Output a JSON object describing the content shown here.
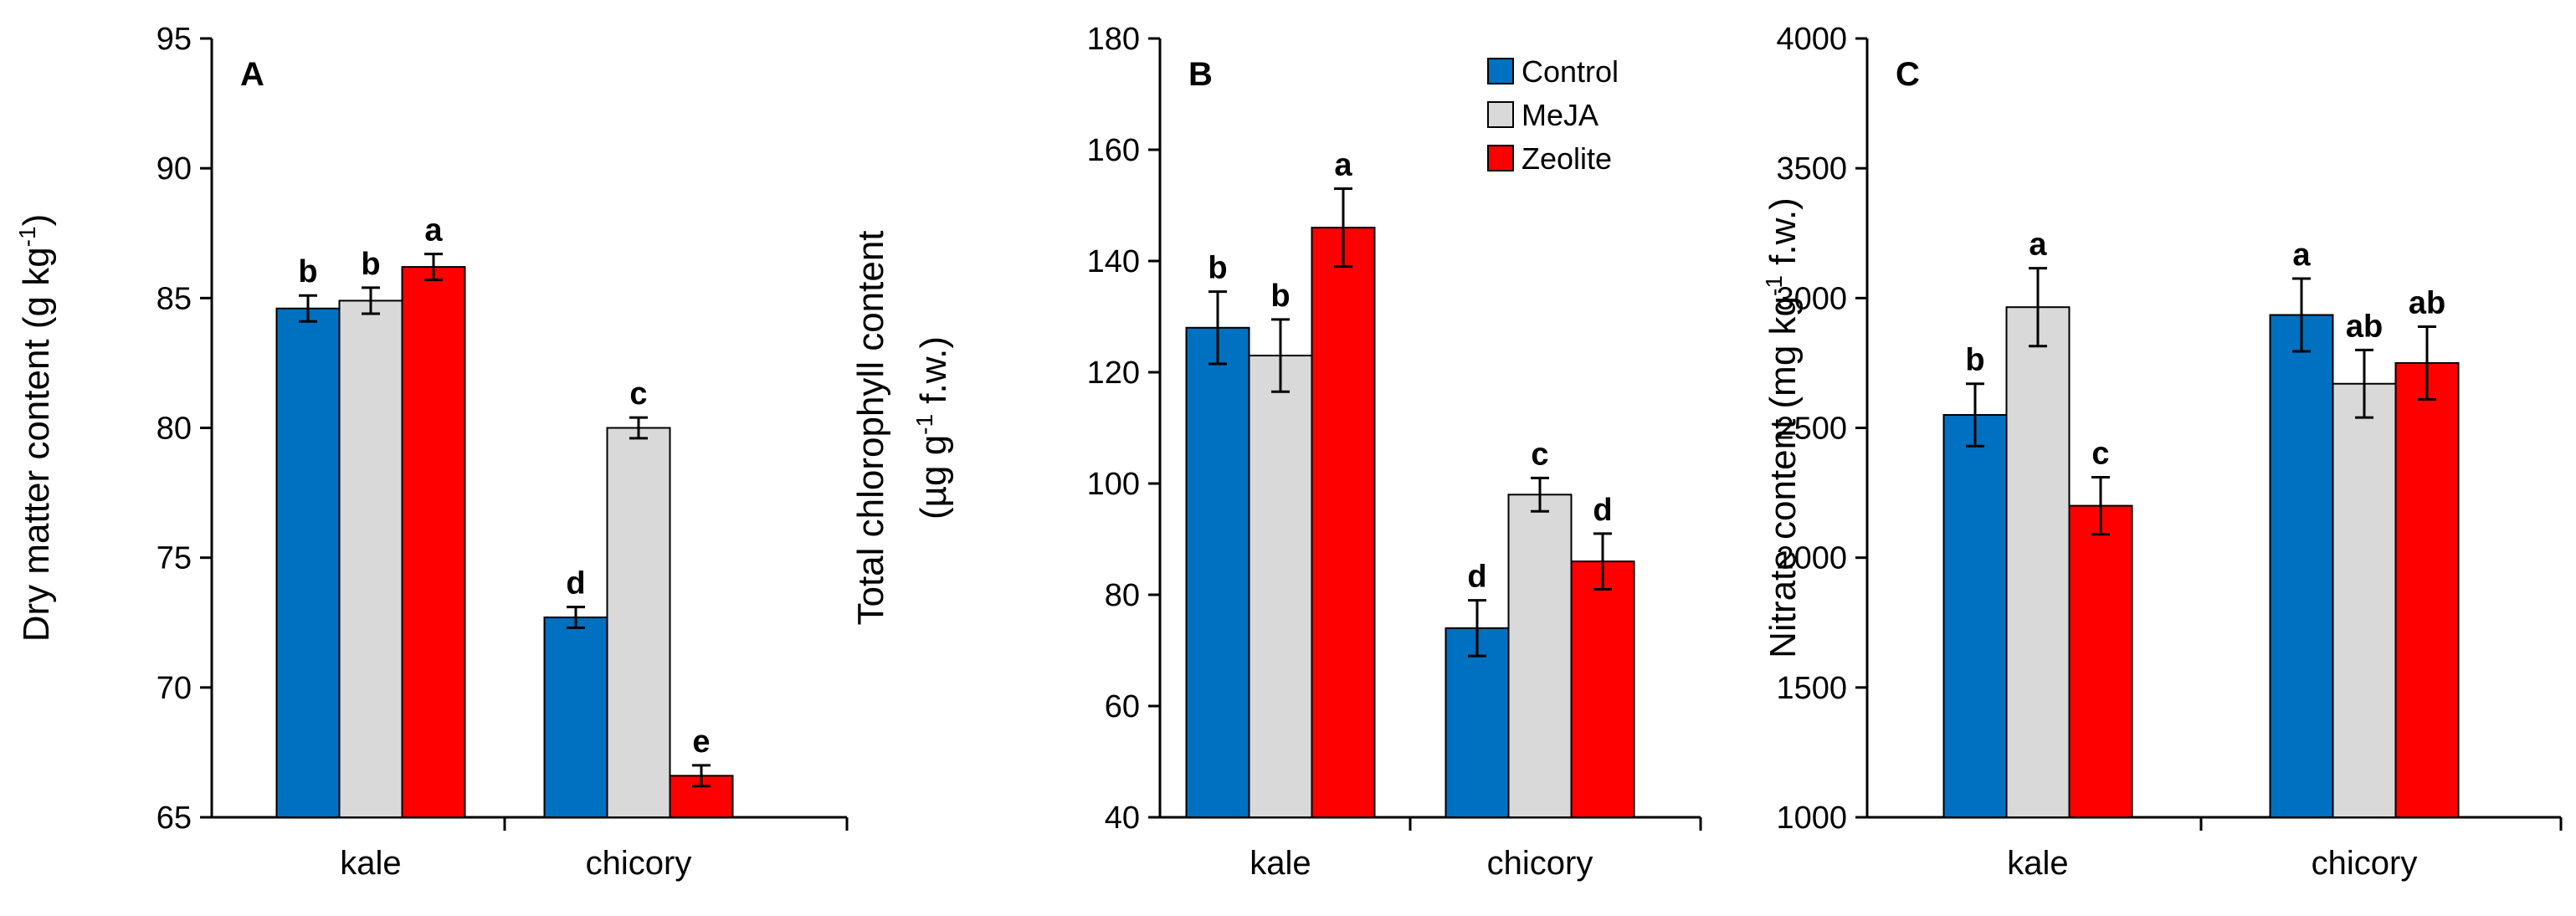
{
  "figure": "three-panel grouped bar chart",
  "legend": {
    "position": "top-right of panel B",
    "entries": [
      {
        "name": "Control",
        "color": "#0070C0"
      },
      {
        "name": "MeJA",
        "color": "#D9D9D9"
      },
      {
        "name": "Zeolite",
        "color": "#FF0000"
      }
    ]
  },
  "chart_data": [
    {
      "type": "bar",
      "panel": "A",
      "categories": [
        "kale",
        "chicory"
      ],
      "ylabel_main": "Dry matter content (g kg",
      "ylabel_sup": "-1",
      "ylabel_close": ")",
      "ylim": [
        65,
        95
      ],
      "yticks": [
        65,
        70,
        75,
        80,
        85,
        90,
        95
      ],
      "series": [
        {
          "name": "Control",
          "values": [
            84.6,
            72.7
          ],
          "errors": [
            0.5,
            0.4
          ],
          "letters": [
            "b",
            "d"
          ]
        },
        {
          "name": "MeJA",
          "values": [
            84.9,
            80.0
          ],
          "errors": [
            0.5,
            0.4
          ],
          "letters": [
            "b",
            "c"
          ]
        },
        {
          "name": "Zeolite",
          "values": [
            86.2,
            66.6
          ],
          "errors": [
            0.5,
            0.4
          ],
          "letters": [
            "a",
            "e"
          ]
        }
      ]
    },
    {
      "type": "bar",
      "panel": "B",
      "categories": [
        "kale",
        "chicory"
      ],
      "ylabel_line1": "Total chlorophyll content",
      "ylabel_line2_main": "(µg g",
      "ylabel_line2_sup": "-1",
      "ylabel_line2_end": " f.w.)",
      "ylim": [
        40,
        180
      ],
      "yticks": [
        40,
        60,
        80,
        100,
        120,
        140,
        160,
        180
      ],
      "series": [
        {
          "name": "Control",
          "values": [
            128,
            74
          ],
          "errors": [
            6.5,
            5.0
          ],
          "letters": [
            "b",
            "d"
          ]
        },
        {
          "name": "MeJA",
          "values": [
            123,
            98
          ],
          "errors": [
            6.5,
            3.0
          ],
          "letters": [
            "b",
            "c"
          ]
        },
        {
          "name": "Zeolite",
          "values": [
            146,
            86
          ],
          "errors": [
            7.0,
            5.0
          ],
          "letters": [
            "a",
            "d"
          ]
        }
      ]
    },
    {
      "type": "bar",
      "panel": "C",
      "categories": [
        "kale",
        "chicory"
      ],
      "ylabel_main": "Nitrate content (mg kg",
      "ylabel_sup": "-1",
      "ylabel_end": " f.w.)",
      "ylim": [
        1000,
        4000
      ],
      "yticks": [
        1000,
        1500,
        2000,
        2500,
        3000,
        3500,
        4000
      ],
      "series": [
        {
          "name": "Control",
          "values": [
            2550,
            2935
          ],
          "errors": [
            120,
            140
          ],
          "letters": [
            "b",
            "a"
          ]
        },
        {
          "name": "MeJA",
          "values": [
            2965,
            2670
          ],
          "errors": [
            150,
            130
          ],
          "letters": [
            "a",
            "ab"
          ]
        },
        {
          "name": "Zeolite",
          "values": [
            2200,
            2750
          ],
          "errors": [
            110,
            140
          ],
          "letters": [
            "c",
            "ab"
          ]
        }
      ]
    }
  ]
}
